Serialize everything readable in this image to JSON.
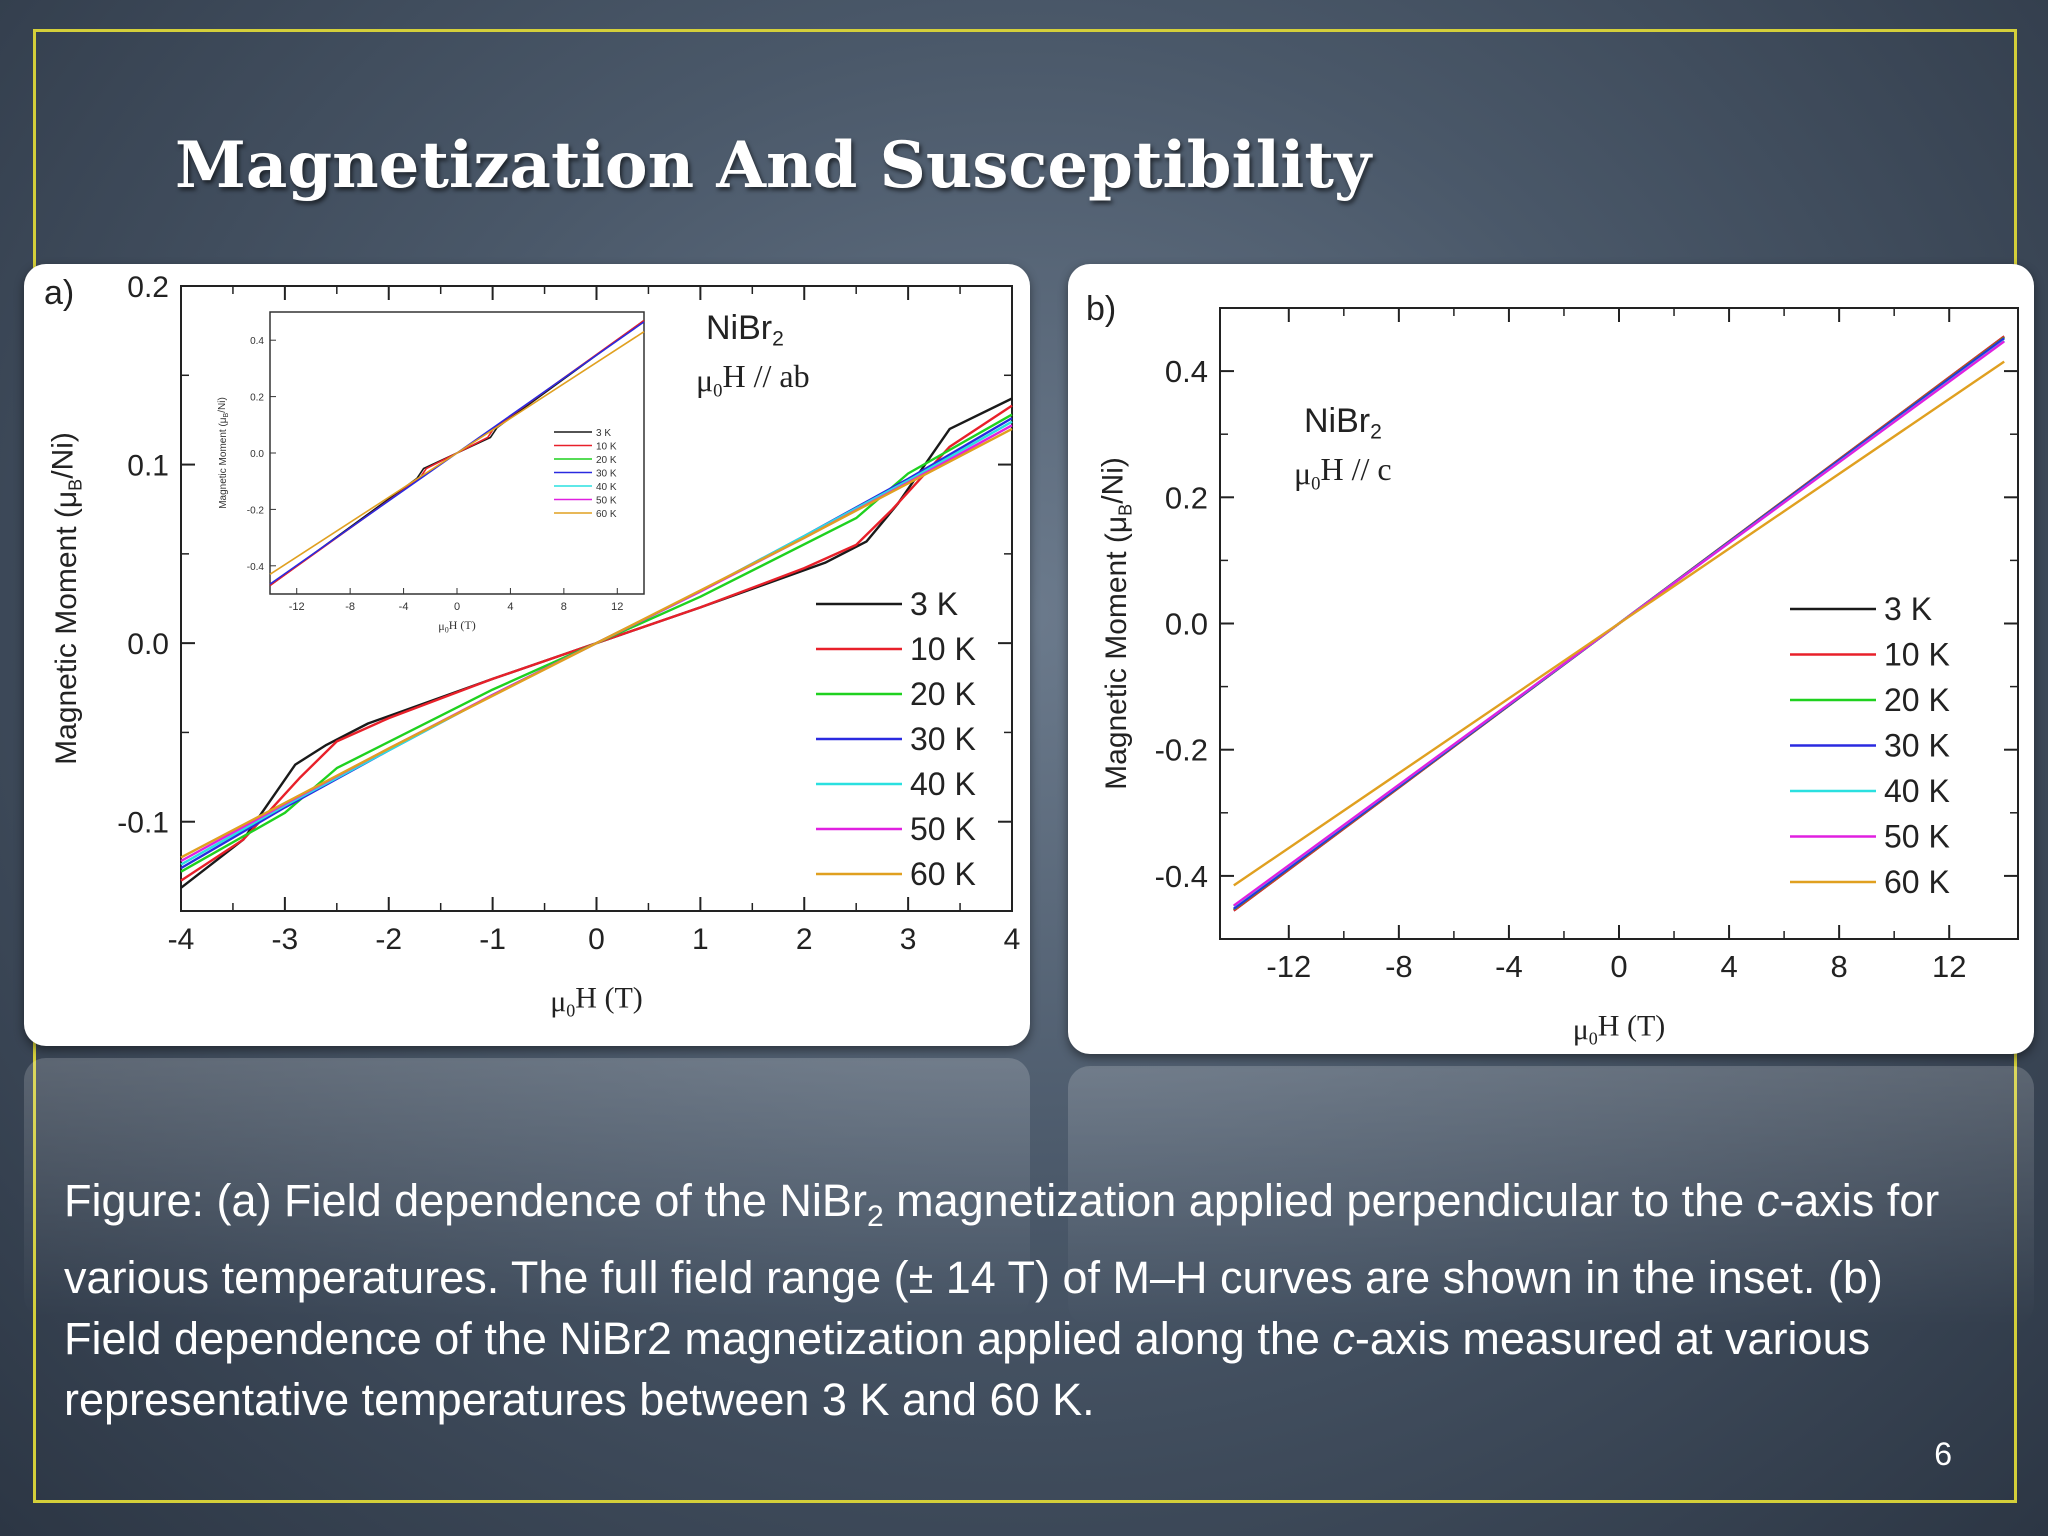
{
  "slide": {
    "title": "Magnetization And Susceptibility",
    "page_number": "6",
    "caption": {
      "p1": "Figure: (a) Field dependence of the NiBr",
      "p1_sub": "2",
      "p2": " magnetization applied perpendicular to the ",
      "p3": "c",
      "p4": "-axis for various temperatures. The full field range (± 14 T) of M–H curves are shown in the inset. (b) Field dependence of the NiBr2 magnetization applied along the ",
      "p5": "c",
      "p6": "-axis measured at various representative temperatures between 3 K and 60 K."
    }
  },
  "colors": {
    "3 K": "#1a1a1a",
    "10 K": "#e8202a",
    "20 K": "#1fd11f",
    "30 K": "#2a2ae0",
    "40 K": "#2ae0e0",
    "50 K": "#e020e0",
    "60 K": "#e0a020"
  },
  "chart_data": [
    {
      "id": "a",
      "type": "line",
      "panel_label": "a)",
      "annotation_compound": "NiBr",
      "annotation_compound_sub": "2",
      "annotation_field": "μ",
      "annotation_field_sub": "0",
      "annotation_field_rest": "H // ab",
      "xlabel": "μ",
      "xlabel_sub": "0",
      "xlabel_rest": "H (T)",
      "ylabel": "Magnetic Moment (μ",
      "ylabel_sub": "B",
      "ylabel_rest": "/Ni)",
      "xlim": [
        -4,
        4
      ],
      "ylim": [
        -0.15,
        0.2
      ],
      "xticks": [
        "-4",
        "-3",
        "-2",
        "-1",
        "0",
        "1",
        "2",
        "3",
        "4"
      ],
      "yticks": [
        {
          "value": -0.1,
          "label": "-0.1"
        },
        {
          "value": 0.0,
          "label": "0.0"
        },
        {
          "value": 0.1,
          "label": "0.1"
        },
        {
          "value": 0.2,
          "label": "0.2"
        }
      ],
      "legend_position": "bottom-right",
      "series": [
        {
          "name": "3 K",
          "x": [
            -4,
            -3.4,
            -2.9,
            -2.6,
            -2.2,
            -1,
            0,
            1,
            2.2,
            2.6,
            2.9,
            3.4,
            4
          ],
          "y": [
            -0.137,
            -0.11,
            -0.068,
            -0.057,
            -0.045,
            -0.02,
            0,
            0.02,
            0.045,
            0.057,
            0.078,
            0.12,
            0.137
          ]
        },
        {
          "name": "10 K",
          "x": [
            -4,
            -3.4,
            -2.85,
            -2.5,
            -2,
            -1,
            0,
            1,
            2,
            2.5,
            2.85,
            3.4,
            4
          ],
          "y": [
            -0.133,
            -0.11,
            -0.075,
            -0.055,
            -0.042,
            -0.02,
            0,
            0.02,
            0.042,
            0.055,
            0.075,
            0.11,
            0.133
          ]
        },
        {
          "name": "20 K",
          "x": [
            -4,
            -3,
            -2.5,
            -1,
            0,
            1,
            2.5,
            3,
            4
          ],
          "y": [
            -0.128,
            -0.095,
            -0.07,
            -0.026,
            0,
            0.026,
            0.07,
            0.095,
            0.128
          ]
        },
        {
          "name": "30 K",
          "x": [
            -4,
            -3,
            -2,
            -1,
            0,
            1,
            2,
            3,
            4
          ],
          "y": [
            -0.126,
            -0.092,
            -0.06,
            -0.029,
            0,
            0.029,
            0.06,
            0.092,
            0.126
          ]
        },
        {
          "name": "40 K",
          "x": [
            -4,
            -3,
            -2,
            -1,
            0,
            1,
            2,
            3,
            4
          ],
          "y": [
            -0.124,
            -0.091,
            -0.06,
            -0.029,
            0,
            0.029,
            0.06,
            0.091,
            0.124
          ]
        },
        {
          "name": "50 K",
          "x": [
            -4,
            -3,
            -2,
            -1,
            0,
            1,
            2,
            3,
            4
          ],
          "y": [
            -0.122,
            -0.09,
            -0.059,
            -0.029,
            0,
            0.029,
            0.059,
            0.09,
            0.122
          ]
        },
        {
          "name": "60 K",
          "x": [
            -4,
            -2,
            0,
            2,
            4
          ],
          "y": [
            -0.12,
            -0.059,
            0,
            0.059,
            0.12
          ]
        }
      ],
      "inset": {
        "type": "line",
        "xlabel": "μ",
        "xlabel_sub": "0",
        "xlabel_rest": "H (T)",
        "ylabel": "Magnetic Moment (μ",
        "ylabel_sub": "B",
        "ylabel_rest": "/Ni)",
        "xlim": [
          -14,
          14
        ],
        "ylim": [
          -0.5,
          0.5
        ],
        "xticks": [
          "-12",
          "-8",
          "-4",
          "0",
          "4",
          "8",
          "12"
        ],
        "yticks": [
          "-0.4",
          "-0.2",
          "0.0",
          "0.2",
          "0.4"
        ],
        "legend": [
          "3 K",
          "10 K",
          "20 K",
          "30 K",
          "40 K",
          "50 K",
          "60 K"
        ],
        "series": [
          {
            "name": "3 K",
            "x": [
              -14,
              -3,
              -2.5,
              2.5,
              3,
              14
            ],
            "y": [
              -0.47,
              -0.09,
              -0.055,
              0.055,
              0.09,
              0.47
            ]
          },
          {
            "name": "10 K",
            "x": [
              -14,
              -2.8,
              -2.3,
              2.3,
              2.8,
              14
            ],
            "y": [
              -0.47,
              -0.09,
              -0.055,
              0.055,
              0.09,
              0.47
            ]
          },
          {
            "name": "30 K",
            "x": [
              -14,
              14
            ],
            "y": [
              -0.465,
              0.465
            ]
          },
          {
            "name": "60 K",
            "x": [
              -14,
              14
            ],
            "y": [
              -0.43,
              0.43
            ]
          }
        ]
      }
    },
    {
      "id": "b",
      "type": "line",
      "panel_label": "b)",
      "annotation_compound": "NiBr",
      "annotation_compound_sub": "2",
      "annotation_field": "μ",
      "annotation_field_sub": "0",
      "annotation_field_rest": "H // c",
      "xlabel": "μ",
      "xlabel_sub": "0",
      "xlabel_rest": "H (T)",
      "ylabel": "Magnetic Moment (μ",
      "ylabel_sub": "B",
      "ylabel_rest": "/Ni)",
      "xlim": [
        -14.5,
        14.5
      ],
      "ylim": [
        -0.5,
        0.5
      ],
      "xticks": [
        {
          "value": -12,
          "label": "-12"
        },
        {
          "value": -8,
          "label": "-8"
        },
        {
          "value": -4,
          "label": "-4"
        },
        {
          "value": 0,
          "label": "0"
        },
        {
          "value": 4,
          "label": "4"
        },
        {
          "value": 8,
          "label": "8"
        },
        {
          "value": 12,
          "label": "12"
        }
      ],
      "yticks": [
        {
          "value": -0.4,
          "label": "-0.4"
        },
        {
          "value": -0.2,
          "label": "-0.2"
        },
        {
          "value": 0.0,
          "label": "0.0"
        },
        {
          "value": 0.2,
          "label": "0.2"
        },
        {
          "value": 0.4,
          "label": "0.4"
        }
      ],
      "legend_position": "bottom-right",
      "series": [
        {
          "name": "3 K",
          "x": [
            -14,
            14
          ],
          "y": [
            -0.455,
            0.455
          ]
        },
        {
          "name": "10 K",
          "x": [
            -14,
            14
          ],
          "y": [
            -0.455,
            0.455
          ]
        },
        {
          "name": "20 K",
          "x": [
            -14,
            14
          ],
          "y": [
            -0.453,
            0.453
          ]
        },
        {
          "name": "30 K",
          "x": [
            -14,
            14
          ],
          "y": [
            -0.452,
            0.452
          ]
        },
        {
          "name": "40 K",
          "x": [
            -14,
            14
          ],
          "y": [
            -0.448,
            0.448
          ]
        },
        {
          "name": "50 K",
          "x": [
            -14,
            14
          ],
          "y": [
            -0.447,
            0.447
          ]
        },
        {
          "name": "60 K",
          "x": [
            -14,
            14
          ],
          "y": [
            -0.415,
            0.415
          ]
        }
      ]
    }
  ]
}
